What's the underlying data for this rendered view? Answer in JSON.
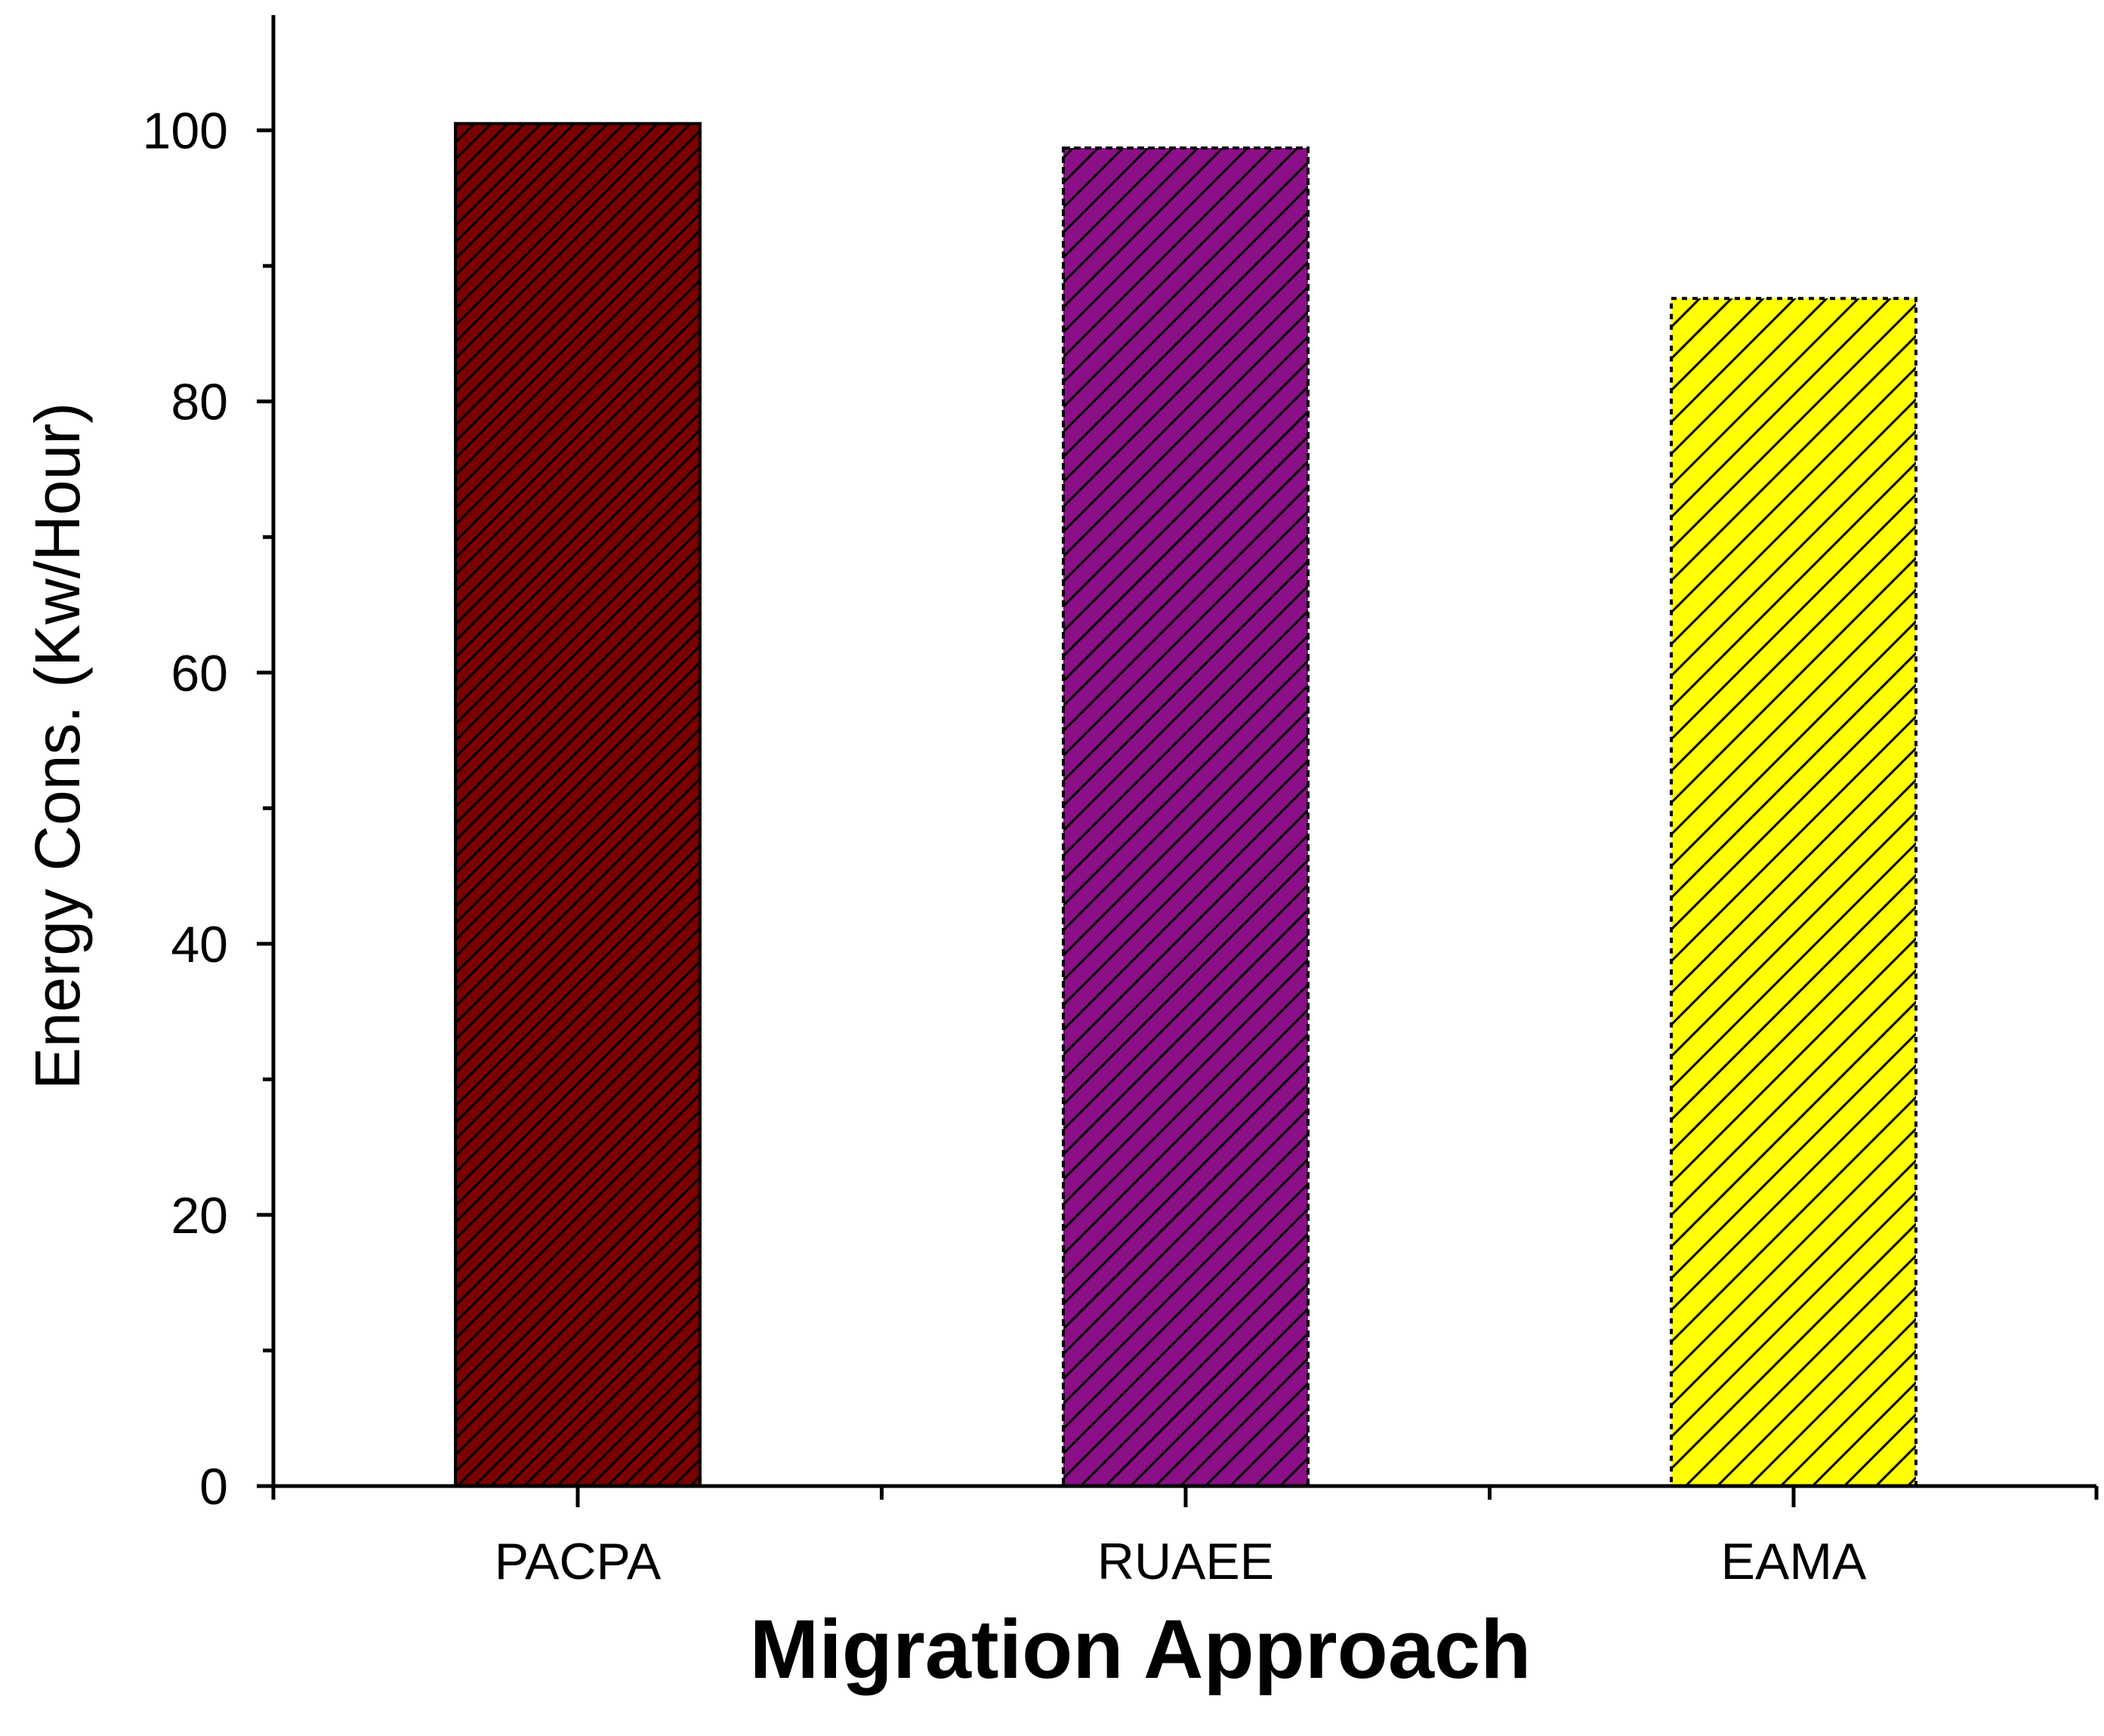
{
  "chart_data": {
    "type": "bar",
    "title": "",
    "categories": [
      "PACPA",
      "RUAEE",
      "EAMA"
    ],
    "values": [
      100.5,
      98.7,
      87.6
    ],
    "xlabel": "Migration Approach",
    "ylabel": "Energy Cons. (Kw/Hour)",
    "ylim": [
      0,
      108.5
    ],
    "yticks": [
      0,
      20,
      40,
      60,
      80,
      100
    ],
    "yticks_minor": [
      10,
      30,
      50,
      70,
      90
    ],
    "grid": false,
    "legend": "none",
    "bar_colors": [
      "#7b0000",
      "#8b0f87",
      "#ffff00"
    ],
    "bar_patterns": [
      "dense-diagonal-hatch",
      "diagonal-hatch",
      "diagonal-hatch-dotted-border"
    ],
    "hatch_color": "#000000",
    "axis_color": "#000000"
  }
}
